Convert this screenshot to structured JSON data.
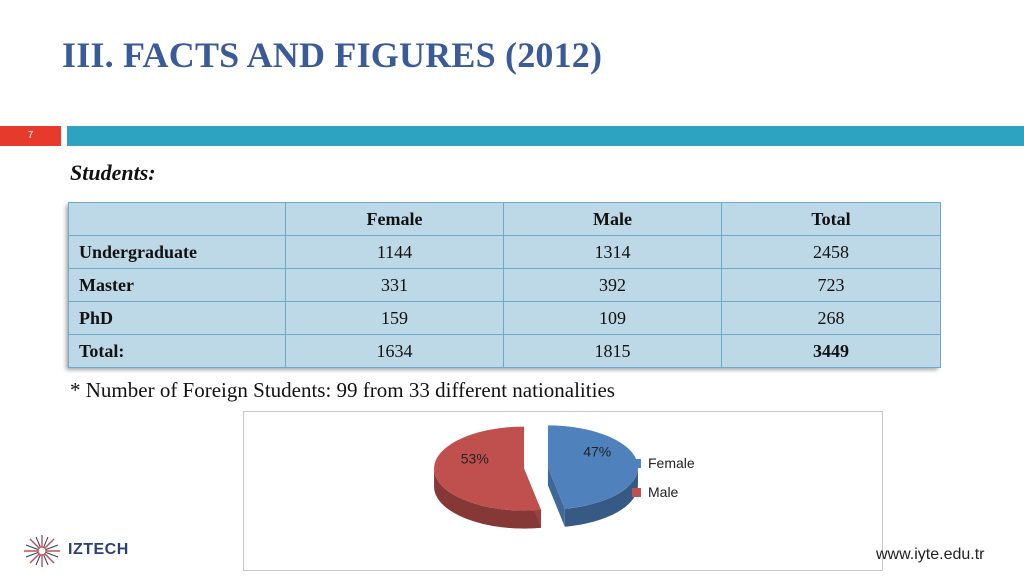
{
  "header": {
    "title": "III. FACTS AND FIGURES (2012)",
    "slide_number": "7"
  },
  "section": {
    "subtitle": "Students:"
  },
  "table": {
    "columns": [
      "",
      "Female",
      "Male",
      "Total"
    ],
    "rows": [
      {
        "label": "Undergraduate",
        "female": "1144",
        "male": "1314",
        "total": "2458"
      },
      {
        "label": "Master",
        "female": "331",
        "male": "392",
        "total": "723"
      },
      {
        "label": "PhD",
        "female": "159",
        "male": "109",
        "total": "268"
      },
      {
        "label": "Total:",
        "female": "1634",
        "male": "1815",
        "total": "3449"
      }
    ]
  },
  "note": "* Number of Foreign Students: 99 from 33 different nationalities",
  "chart_data": {
    "type": "pie",
    "categories": [
      "Female",
      "Male"
    ],
    "values": [
      47,
      53
    ],
    "labels": [
      "47%",
      "53%"
    ],
    "colors": [
      "#4f81bd",
      "#c0504d"
    ],
    "legend": "right"
  },
  "footer": {
    "logo_text": "IZTECH",
    "url": "www.iyte.edu.tr"
  },
  "colors": {
    "title": "#3a5a98",
    "accent_red": "#e63a2c",
    "accent_blue": "#2ea3c0",
    "table_fill": "#bdd8e6"
  }
}
